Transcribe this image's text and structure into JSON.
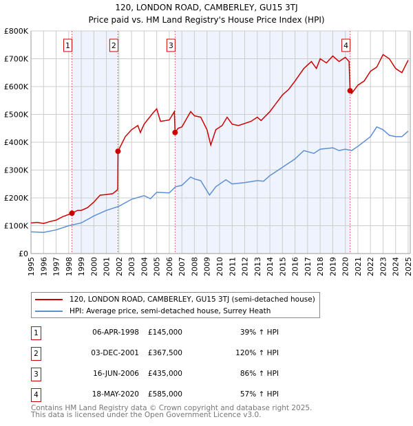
{
  "chart_data": {
    "type": "line",
    "title": "120, LONDON ROAD, CAMBERLEY, GU15 3TJ",
    "subtitle": "Price paid vs. HM Land Registry's House Price Index (HPI)",
    "xlim": [
      1995,
      2025
    ],
    "ylim": [
      0,
      800000
    ],
    "x_ticks": [
      "1995",
      "1996",
      "1997",
      "1998",
      "1999",
      "2000",
      "2001",
      "2002",
      "2003",
      "2004",
      "2005",
      "2006",
      "2007",
      "2008",
      "2009",
      "2010",
      "2011",
      "2012",
      "2013",
      "2014",
      "2015",
      "2016",
      "2017",
      "2018",
      "2019",
      "2020",
      "2021",
      "2022",
      "2023",
      "2024",
      "2025"
    ],
    "y_ticks": [
      {
        "v": 0,
        "label": "£0"
      },
      {
        "v": 100000,
        "label": "£100K"
      },
      {
        "v": 200000,
        "label": "£200K"
      },
      {
        "v": 300000,
        "label": "£300K"
      },
      {
        "v": 400000,
        "label": "£400K"
      },
      {
        "v": 500000,
        "label": "£500K"
      },
      {
        "v": 600000,
        "label": "£600K"
      },
      {
        "v": 700000,
        "label": "£700K"
      },
      {
        "v": 800000,
        "label": "£800K"
      }
    ],
    "grid": true,
    "series": [
      {
        "name": "120, LONDON ROAD, CAMBERLEY, GU15 3TJ (semi-detached house)",
        "color": "#cc0000",
        "x": [
          1995,
          1995.5,
          1996,
          1996.5,
          1997,
          1997.5,
          1998.26,
          1998.7,
          1999,
          1999.5,
          2000,
          2000.5,
          2001,
          2001.5,
          2001.9,
          2001.92,
          2002.5,
          2003,
          2003.5,
          2003.7,
          2004,
          2004.7,
          2005,
          2005.3,
          2006,
          2006.4,
          2006.46,
          2006.7,
          2007,
          2007.7,
          2008,
          2008.5,
          2009,
          2009.3,
          2009.7,
          2010.2,
          2010.6,
          2011,
          2011.5,
          2012.5,
          2013,
          2013.3,
          2014,
          2014.5,
          2015,
          2015.5,
          2016,
          2016.7,
          2017.3,
          2017.7,
          2018,
          2018.5,
          2019,
          2019.5,
          2020,
          2020.3,
          2020.38,
          2020.5,
          2021,
          2021.5,
          2022,
          2022.5,
          2023,
          2023.5,
          2024,
          2024.5,
          2025
        ],
        "y": [
          110000,
          112000,
          108000,
          115000,
          120000,
          132000,
          145000,
          155000,
          155000,
          165000,
          185000,
          210000,
          212000,
          215000,
          230000,
          367500,
          420000,
          445000,
          460000,
          435000,
          465000,
          505000,
          520000,
          475000,
          480000,
          510000,
          435000,
          450000,
          455000,
          510000,
          495000,
          490000,
          445000,
          390000,
          445000,
          460000,
          490000,
          465000,
          460000,
          475000,
          490000,
          478000,
          510000,
          540000,
          570000,
          590000,
          620000,
          665000,
          690000,
          665000,
          700000,
          685000,
          710000,
          690000,
          705000,
          690000,
          585000,
          575000,
          605000,
          620000,
          655000,
          670000,
          715000,
          700000,
          665000,
          650000,
          695000
        ]
      },
      {
        "name": "HPI: Average price, semi-detached house, Surrey Heath",
        "color": "#5b8fd4",
        "x": [
          1995,
          1996,
          1997,
          1998,
          1999,
          2000,
          2001,
          2002,
          2003,
          2004,
          2004.5,
          2005,
          2006,
          2006.5,
          2007,
          2007.7,
          2008,
          2008.5,
          2009.2,
          2009.7,
          2010.5,
          2011,
          2012,
          2013,
          2013.5,
          2014,
          2015,
          2016,
          2016.7,
          2017.5,
          2018,
          2019,
          2019.5,
          2020,
          2020.5,
          2021,
          2022,
          2022.5,
          2023,
          2023.5,
          2024,
          2024.5,
          2025
        ],
        "y": [
          78000,
          76000,
          85000,
          100000,
          110000,
          135000,
          155000,
          170000,
          195000,
          208000,
          197000,
          220000,
          218000,
          240000,
          245000,
          275000,
          268000,
          262000,
          210000,
          240000,
          265000,
          250000,
          255000,
          262000,
          260000,
          280000,
          310000,
          340000,
          370000,
          360000,
          375000,
          380000,
          370000,
          375000,
          370000,
          385000,
          420000,
          455000,
          445000,
          425000,
          420000,
          420000,
          440000
        ]
      }
    ],
    "sales": [
      {
        "n": "1",
        "x": 1998.26,
        "y": 145000,
        "date": "06-APR-1998",
        "price": "£145,000",
        "hpi": "39% ↑ HPI"
      },
      {
        "n": "2",
        "x": 2001.92,
        "y": 367500,
        "date": "03-DEC-2001",
        "price": "£367,500",
        "hpi": "120% ↑ HPI"
      },
      {
        "n": "3",
        "x": 2006.46,
        "y": 435000,
        "date": "16-JUN-2006",
        "price": "£435,000",
        "hpi": "86% ↑ HPI"
      },
      {
        "n": "4",
        "x": 2020.38,
        "y": 585000,
        "date": "18-MAY-2020",
        "price": "£585,000",
        "hpi": "57% ↑ HPI"
      }
    ],
    "legend": "below"
  },
  "footer": {
    "line1": "Contains HM Land Registry data © Crown copyright and database right 2025.",
    "line2": "This data is licensed under the Open Government Licence v3.0."
  }
}
